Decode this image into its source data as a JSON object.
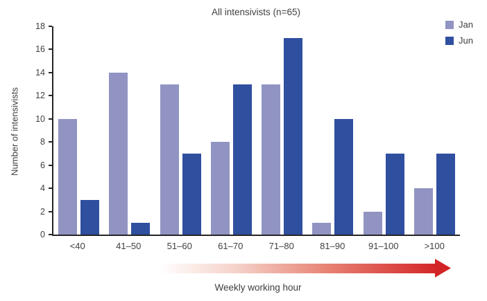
{
  "chart_data": {
    "type": "bar",
    "title": "All intensivists (n=65)",
    "categories": [
      "<40",
      "41–50",
      "51–60",
      "61–70",
      "71–80",
      "81–90",
      "91–100",
      ">100"
    ],
    "series": [
      {
        "name": "Jan",
        "color": "#9194c2",
        "values": [
          10,
          14,
          13,
          8,
          13,
          1,
          2,
          4
        ]
      },
      {
        "name": "Jun",
        "color": "#2f4f9f",
        "values": [
          3,
          1,
          7,
          13,
          17,
          10,
          7,
          7
        ]
      }
    ],
    "xlabel": "Weekly working hour",
    "ylabel": "Number of intensivists",
    "ylim": [
      0,
      18
    ],
    "ytick_step": 2,
    "legend_position": "top-right",
    "grid": false
  },
  "arrow": {
    "label": "Weekly working hour",
    "gradient_start": "#ffffff",
    "gradient_end": "#d42527"
  },
  "axis_color": "#262425",
  "text_color": "#3f3f3f"
}
